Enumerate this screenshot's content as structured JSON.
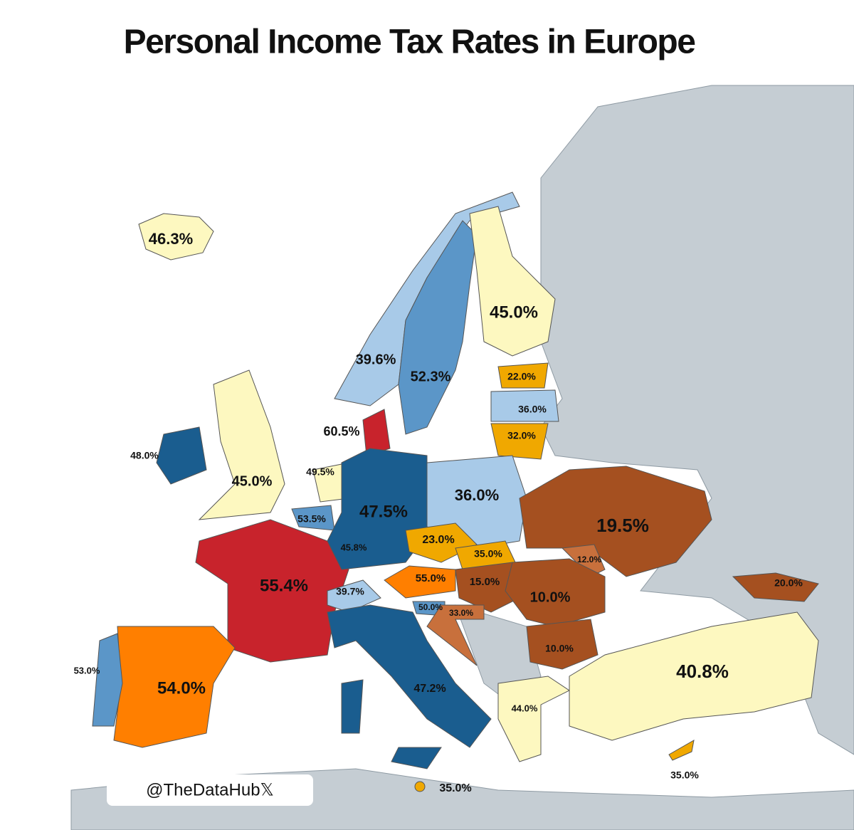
{
  "title": "Personal Income Tax Rates in Europe",
  "labels": [
    "46.3%",
    "39.6%",
    "52.3%",
    "45.0%",
    "22.0%",
    "36.0%",
    "32.0%",
    "60.5%",
    "48.0%",
    "45.0%",
    "49.5%",
    "53.5%",
    "45.8%",
    "47.5%",
    "36.0%",
    "23.0%",
    "35.0%",
    "19.5%",
    "12.0%",
    "55.4%",
    "39.7%",
    "55.0%",
    "15.0%",
    "10.0%",
    "20.0%",
    "50.0%",
    "33.0%",
    "10.0%",
    "53.0%",
    "54.0%",
    "47.2%",
    "44.0%",
    "40.8%",
    "35.0%",
    "35.0%"
  ],
  "watermark": "@TheDataHub𝕏"
}
